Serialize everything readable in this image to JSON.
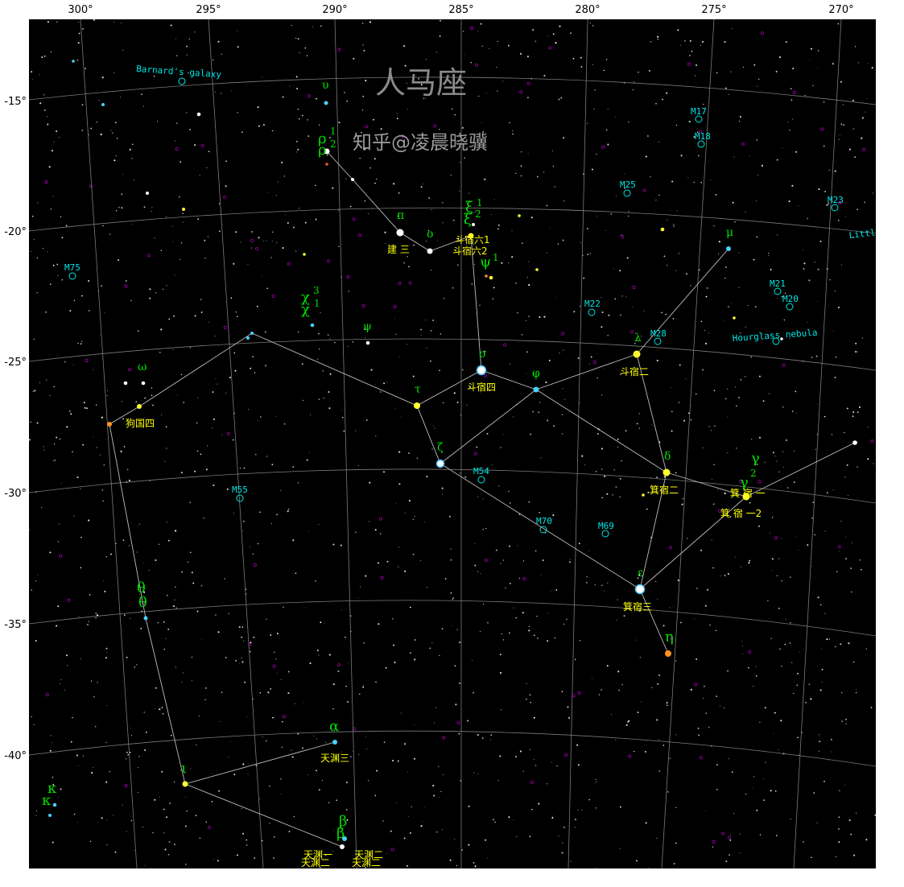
{
  "title": "人马座",
  "watermark": "知乎@凌晨晓骥",
  "colors": {
    "background": "#000000",
    "grid": "#7a7a7a",
    "constellation_line": "#bdbdbd",
    "star_name": "#ffff00",
    "greek": "#00e000",
    "dso": "#00e5e5"
  },
  "ra_ticks": [
    "300°",
    "295°",
    "290°",
    "285°",
    "280°",
    "275°",
    "270°"
  ],
  "dec_ticks": [
    "-15°",
    "-20°",
    "-25°",
    "-30°",
    "-35°",
    "-40°"
  ],
  "star_names": [
    "建 三",
    "斗宿六1",
    "斗宿六2",
    "斗宿四",
    "斗宿二",
    "狗国四",
    "箕宿二",
    "箕 宿 一",
    "箕 宿 一2",
    "箕宿三",
    "天渊三",
    "天渊一",
    "天渊二",
    "天渊二",
    "天渊二"
  ],
  "greek_labels": [
    "υ",
    "ρ",
    "1",
    "ρ",
    "2",
    "π",
    "ο",
    "ξ",
    "1",
    "ξ",
    "2",
    "ψ",
    "1",
    "χ",
    "3",
    "χ",
    "1",
    "ψ",
    "σ",
    "ω",
    "τ",
    "φ",
    "λ",
    "μ",
    "ζ",
    "δ",
    "γ",
    "2",
    "γ",
    "θ",
    "θ",
    "ε",
    "η",
    "α",
    "ι",
    "β",
    "β",
    "κ",
    "κ"
  ],
  "dso_labels": [
    "Barnard's galaxy",
    "M17",
    "M18",
    "M25",
    "M23",
    "Littl",
    "M75",
    "M21",
    "M20",
    "M22",
    "M28",
    "Hourglass nebula",
    "M54",
    "M55",
    "M70",
    "M69"
  ]
}
